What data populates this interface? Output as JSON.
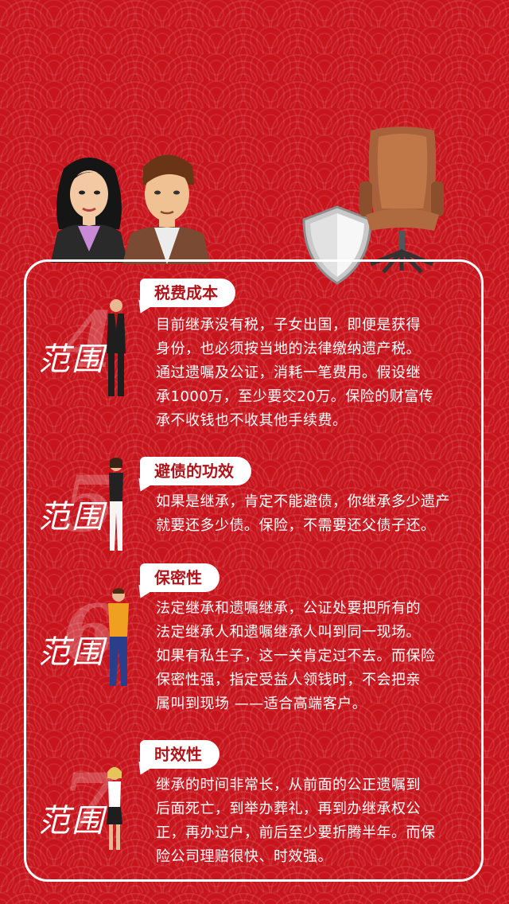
{
  "hero": {
    "illustrations": [
      "woman-avatar",
      "man-avatar",
      "shield-icon",
      "office-chair"
    ]
  },
  "sections": [
    {
      "number": "4",
      "scope_label": "范围",
      "title": "税费成本",
      "lines": [
        "目前继承没有税，子女出国，即便是获得",
        "身份，也必须按当地的法律缴纳遗产税。",
        "通过遗嘱及公证，消耗一笔费用。假设继",
        "承1000万，至少要交20万。保险的财富传",
        "承不收钱也不收其他手续费。"
      ]
    },
    {
      "number": "5",
      "scope_label": "范围",
      "title": "避债的功效",
      "lines": [
        "如果是继承，肯定不能避债，你继承多少遗产",
        "就要还多少债。保险，不需要还父债子还。"
      ]
    },
    {
      "number": "6",
      "scope_label": "范围",
      "title": "保密性",
      "lines": [
        "法定继承和遗嘱继承，公证处要把所有的",
        "法定继承人和遗嘱继承人叫到同一现场。",
        "如果有私生子，这一关肯定过不去。而保险",
        "保密性强，指定受益人领钱时，不会把亲",
        "属叫到现场 ——适合高端客户。"
      ]
    },
    {
      "number": "7",
      "scope_label": "范围",
      "title": "时效性",
      "lines": [
        "继承的时间非常长，从前面的公正遗嘱到",
        "后面死亡，到举办葬礼，再到办继承权公",
        "正，再办过户，前后至少要折腾半年。而保",
        "险公司理赔很快、时效强。"
      ]
    }
  ],
  "colors": {
    "background": "#c8141c",
    "accent": "#b0141a",
    "text": "#ffffff"
  }
}
